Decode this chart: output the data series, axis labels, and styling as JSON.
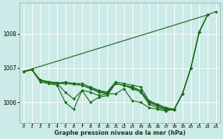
{
  "background_color": "#cceae7",
  "grid_color": "#ffffff",
  "line_color": "#1a6b1a",
  "x_labels": [
    "0",
    "1",
    "2",
    "3",
    "4",
    "5",
    "6",
    "7",
    "8",
    "9",
    "10",
    "11",
    "12",
    "13",
    "14",
    "15",
    "16",
    "17",
    "18",
    "19",
    "20",
    "21",
    "22",
    "23"
  ],
  "xlabel": "Graphe pression niveau de la mer (hPa)",
  "ylim": [
    1005.4,
    1008.9
  ],
  "yticks": [
    1006,
    1007,
    1008
  ],
  "series_with_markers": [
    [
      1006.9,
      1006.95,
      1006.65,
      1006.6,
      1006.55,
      1006.3,
      1006.1,
      1006.35,
      1006.3,
      1006.2,
      1006.25,
      1006.25,
      1006.4,
      1006.05,
      1006.0,
      1005.85,
      1005.8,
      1005.75,
      1005.8,
      1006.25,
      null,
      null,
      null,
      null
    ],
    [
      1006.9,
      1006.95,
      1006.65,
      1006.6,
      1006.55,
      1006.6,
      1006.55,
      1006.55,
      1006.45,
      1006.35,
      1006.3,
      1006.6,
      1006.55,
      1006.5,
      1006.45,
      1006.05,
      1005.95,
      1005.85,
      1005.8,
      1006.25,
      1007.0,
      1008.05,
      1008.55,
      null
    ],
    [
      1006.9,
      1006.95,
      1006.65,
      1006.55,
      1006.55,
      1006.55,
      1006.55,
      1006.5,
      1006.4,
      1006.3,
      1006.25,
      1006.55,
      1006.5,
      1006.45,
      1006.35,
      1006.0,
      1005.9,
      1005.8,
      1005.78,
      1006.25,
      1007.0,
      1008.05,
      1008.55,
      null
    ],
    [
      1006.9,
      1006.95,
      1006.6,
      1006.55,
      1006.5,
      1006.0,
      1005.8,
      1006.35,
      1006.0,
      1006.15,
      1006.2,
      1006.55,
      1006.5,
      1006.4,
      1006.3,
      1005.95,
      1005.85,
      1005.78,
      1005.78,
      1006.25,
      1007.0,
      1008.05,
      1008.55,
      null
    ],
    [
      1006.9,
      1006.95,
      1006.65,
      1006.6,
      1006.58,
      1006.55,
      1006.53,
      1006.5,
      1006.42,
      1006.32,
      1006.28,
      1006.55,
      1006.5,
      1006.42,
      1006.35,
      1006.02,
      1005.92,
      1005.82,
      1005.8,
      1006.25,
      1007.0,
      1008.05,
      1008.55,
      1008.65
    ]
  ],
  "trend_line": [
    [
      0,
      1006.9
    ],
    [
      22,
      1008.55
    ]
  ],
  "markersize": 2.0,
  "linewidth": 0.9
}
